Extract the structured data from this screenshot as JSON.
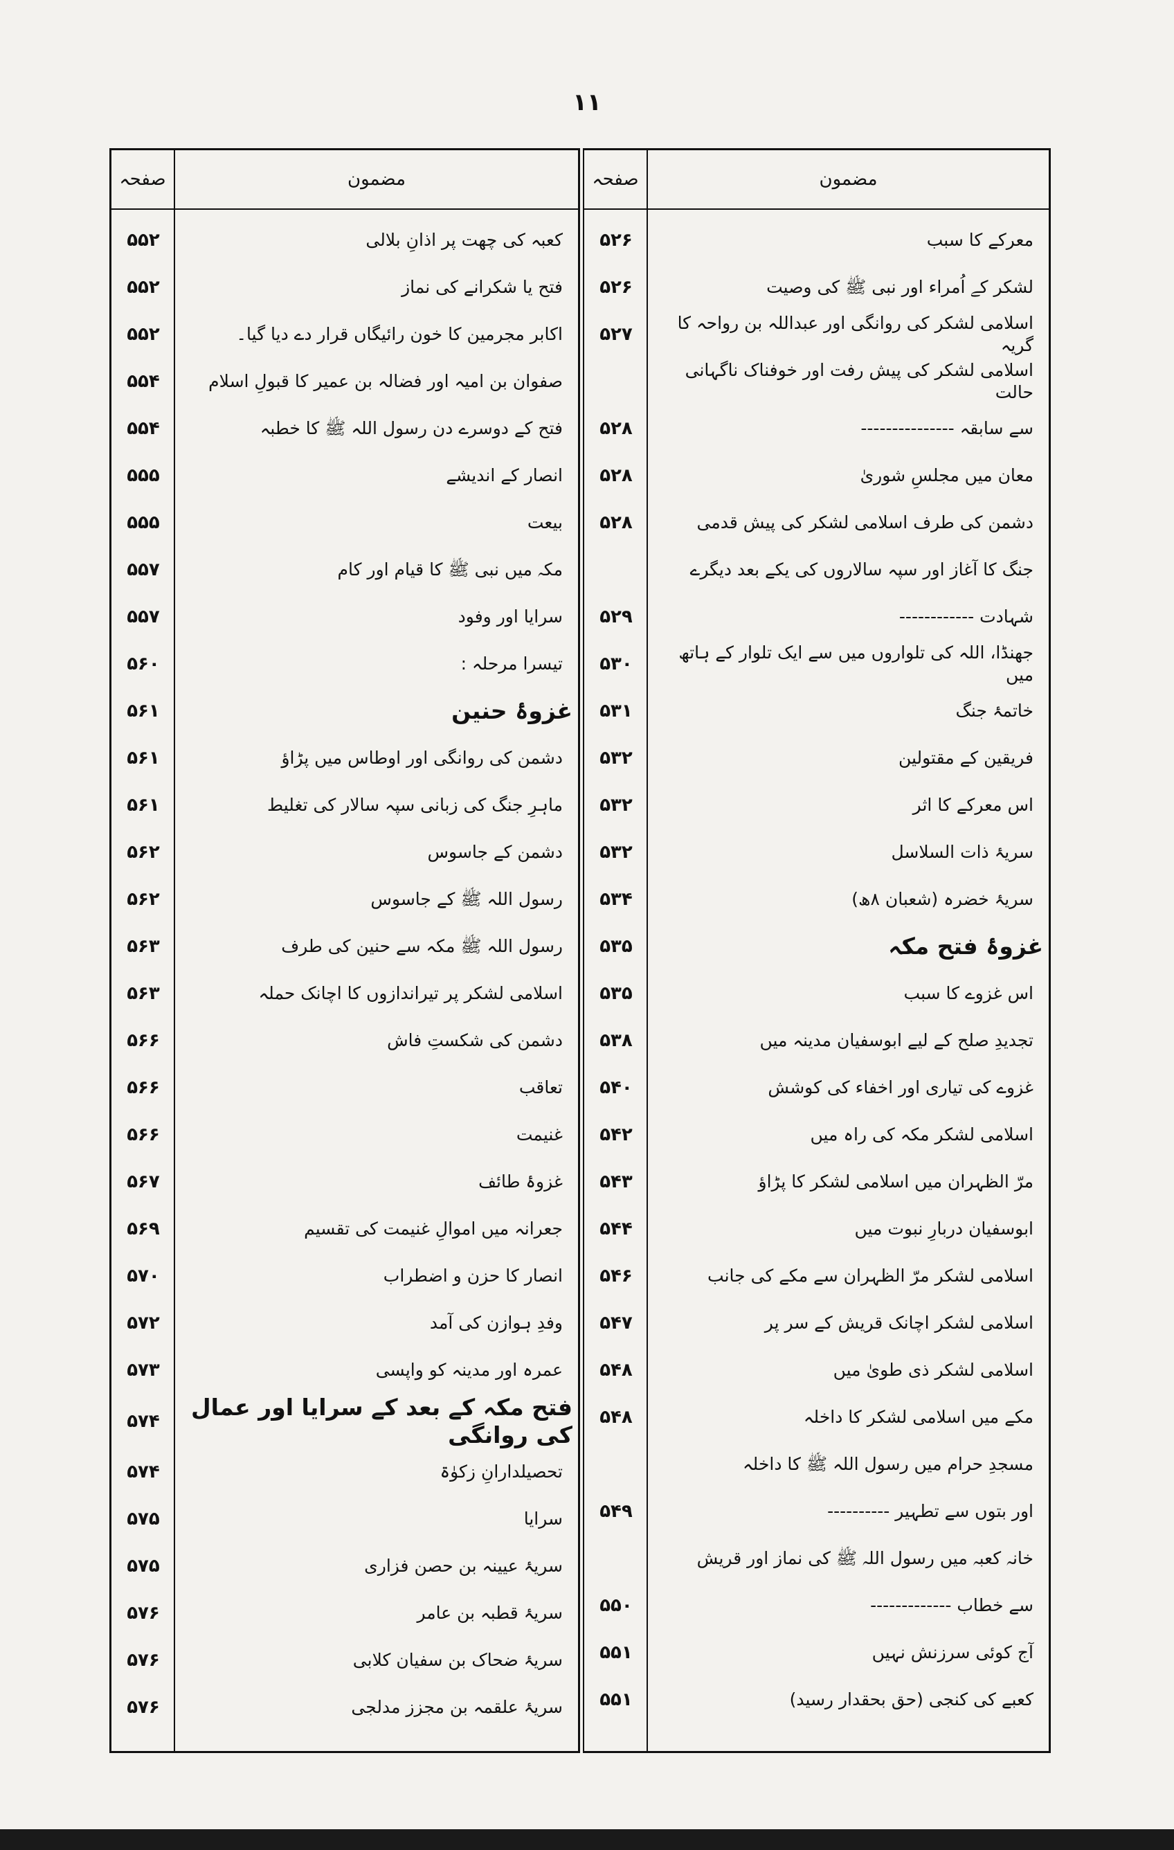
{
  "page_number": "۱۱",
  "columns": {
    "page": "صفحہ",
    "topic": "مضمون"
  },
  "left_table": [
    {
      "text": "کعبہ کی چھت پر اذانِ بلالی",
      "page": "۵۵۲"
    },
    {
      "text": "فتح یا شکرانے کی نماز",
      "page": "۵۵۲"
    },
    {
      "text": "اکابر مجرمین کا خون رائیگاں قرار دے دیا گیا۔",
      "page": "۵۵۲"
    },
    {
      "text": "صفوان بن امیہ اور فضالہ بن عمیر کا قبولِ اسلام",
      "page": "۵۵۴"
    },
    {
      "text": "فتح کے دوسرے دن رسول اللہ ﷺ کا خطبہ",
      "page": "۵۵۴"
    },
    {
      "text": "انصار کے اندیشے",
      "page": "۵۵۵"
    },
    {
      "text": "بیعت",
      "page": "۵۵۵"
    },
    {
      "text": "مکہ میں نبی ﷺ کا قیام اور کام",
      "page": "۵۵۷"
    },
    {
      "text": "سرایا اور وفود",
      "page": "۵۵۷"
    },
    {
      "text": "تیسرا مرحلہ :",
      "page": "۵۶۰"
    },
    {
      "text": "غزوۂ حنین",
      "page": "۵۶۱",
      "heading": true
    },
    {
      "text": "دشمن کی روانگی اور اوطاس میں پڑاؤ",
      "page": "۵۶۱"
    },
    {
      "text": "ماہرِ جنگ کی زبانی سپہ سالار کی تغلیط",
      "page": "۵۶۱"
    },
    {
      "text": "دشمن کے جاسوس",
      "page": "۵۶۲"
    },
    {
      "text": "رسول اللہ ﷺ کے جاسوس",
      "page": "۵۶۲"
    },
    {
      "text": "رسول اللہ ﷺ مکہ سے حنین کی طرف",
      "page": "۵۶۳"
    },
    {
      "text": "اسلامی لشکر پر تیراندازوں کا اچانک حملہ",
      "page": "۵۶۳"
    },
    {
      "text": "دشمن کی شکستِ فاش",
      "page": "۵۶۶"
    },
    {
      "text": "تعاقب",
      "page": "۵۶۶"
    },
    {
      "text": "غنیمت",
      "page": "۵۶۶"
    },
    {
      "text": "غزوۂ طائف",
      "page": "۵۶۷"
    },
    {
      "text": "جعرانہ میں اموالِ غنیمت کی تقسیم",
      "page": "۵۶۹"
    },
    {
      "text": "انصار کا حزن و اضطراب",
      "page": "۵۷۰"
    },
    {
      "text": "وفدِ ہوازن کی آمد",
      "page": "۵۷۲"
    },
    {
      "text": "عمرہ اور مدینہ کو واپسی",
      "page": "۵۷۳"
    },
    {
      "text": "فتح مکہ کے بعد کے سرایا اور عمال کی روانگی",
      "page": "۵۷۴",
      "heading": true
    },
    {
      "text": "تحصیلدارانِ زکوٰۃ",
      "page": "۵۷۴"
    },
    {
      "text": "سرایا",
      "page": "۵۷۵"
    },
    {
      "text": "سریۂ عیینہ بن حصن فزاری",
      "page": "۵۷۵"
    },
    {
      "text": "سریۂ قطبہ بن عامر",
      "page": "۵۷۶"
    },
    {
      "text": "سریۂ ضحاک بن سفیان کلابی",
      "page": "۵۷۶"
    },
    {
      "text": "سریۂ علقمہ بن مجزز مدلجی",
      "page": "۵۷۶"
    }
  ],
  "right_table": [
    {
      "text": "معرکے کا سبب",
      "page": "۵۲۶"
    },
    {
      "text": "لشکر کے اُمراء اور نبی ﷺ کی وصیت",
      "page": "۵۲۶"
    },
    {
      "text": "اسلامی لشکر کی روانگی اور عبداللہ بن رواحہ کا گریہ",
      "page": "۵۲۷"
    },
    {
      "text": "اسلامی لشکر کی پیش رفت اور خوفناک ناگہانی حالت",
      "page": ""
    },
    {
      "text": "سے سابقہ ---------------",
      "page": "۵۲۸"
    },
    {
      "text": "معان میں مجلسِ شوریٰ",
      "page": "۵۲۸"
    },
    {
      "text": "دشمن کی طرف اسلامی لشکر کی پیش قدمی",
      "page": "۵۲۸"
    },
    {
      "text": "جنگ کا آغاز اور سپہ سالاروں کی یکے بعد دیگرے",
      "page": ""
    },
    {
      "text": "شہادت ------------",
      "page": "۵۲۹"
    },
    {
      "text": "جھنڈا، اللہ کی تلواروں میں سے ایک تلوار کے ہاتھ میں",
      "page": "۵۳۰"
    },
    {
      "text": "خاتمۂ جنگ",
      "page": "۵۳۱"
    },
    {
      "text": "فریقین کے مقتولین",
      "page": "۵۳۲"
    },
    {
      "text": "اس معرکے کا اثر",
      "page": "۵۳۲"
    },
    {
      "text": "سریۂ ذات السلاسل",
      "page": "۵۳۲"
    },
    {
      "text": "سریۂ خضرہ (شعبان ۸ھ)",
      "page": "۵۳۴"
    },
    {
      "text": "غزوۂ فتح مکہ",
      "page": "۵۳۵",
      "heading": true
    },
    {
      "text": "اس غزوے کا سبب",
      "page": "۵۳۵"
    },
    {
      "text": "تجدیدِ صلح کے لیے ابوسفیان مدینہ میں",
      "page": "۵۳۸"
    },
    {
      "text": "غزوے کی تیاری اور اخفاء کی کوشش",
      "page": "۵۴۰"
    },
    {
      "text": "اسلامی لشکر مکہ کی راہ میں",
      "page": "۵۴۲"
    },
    {
      "text": "مرّ الظہران میں اسلامی لشکر کا پڑاؤ",
      "page": "۵۴۳"
    },
    {
      "text": "ابوسفیان دربارِ نبوت میں",
      "page": "۵۴۴"
    },
    {
      "text": "اسلامی لشکر مرّ الظہران سے مکے کی جانب",
      "page": "۵۴۶"
    },
    {
      "text": "اسلامی لشکر اچانک قریش کے سر پر",
      "page": "۵۴۷"
    },
    {
      "text": "اسلامی لشکر ذی طویٰ میں",
      "page": "۵۴۸"
    },
    {
      "text": "مکے میں اسلامی لشکر کا داخلہ",
      "page": "۵۴۸"
    },
    {
      "text": "مسجدِ حرام میں رسول اللہ ﷺ کا داخلہ",
      "page": ""
    },
    {
      "text": "اور بتوں سے تطہیر ----------",
      "page": "۵۴۹"
    },
    {
      "text": "خانہ کعبہ میں رسول اللہ ﷺ کی نماز اور قریش",
      "page": ""
    },
    {
      "text": "سے خطاب -------------",
      "page": "۵۵۰"
    },
    {
      "text": "آج کوئی سرزنش نہیں",
      "page": "۵۵۱"
    },
    {
      "text": "کعبے کی کنجی (حق بحقدار رسید)",
      "page": "۵۵۱"
    }
  ]
}
